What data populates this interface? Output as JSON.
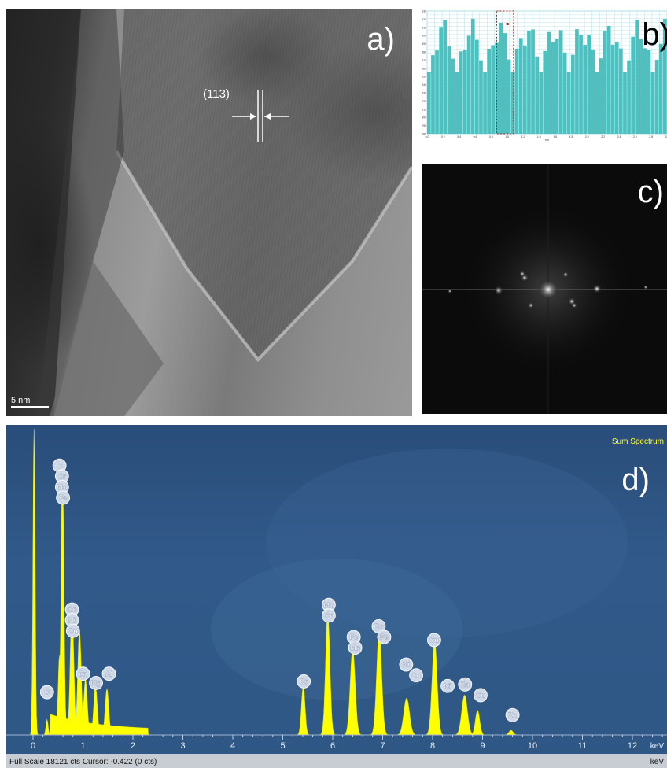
{
  "panel_labels": {
    "a": "a)",
    "b": "b)",
    "c": "c)",
    "d": "d)"
  },
  "tem": {
    "plane": "(113)",
    "scale_bar": "5 nm"
  },
  "profile": {
    "y_ticks": [
      "780",
      "790",
      "800",
      "810",
      "820",
      "830",
      "840",
      "850",
      "860",
      "870",
      "880",
      "890",
      "900",
      "910",
      "920",
      "930"
    ],
    "x_ticks": [
      "0.0",
      "0.2",
      "0.4",
      "0.6",
      "0.8",
      "1.0",
      "1.2",
      "1.4",
      "1.6",
      "1.8",
      "2.0",
      "2.2",
      "2.4",
      "2.6",
      "2.8",
      "3.0"
    ],
    "x_unit": "nm",
    "bar_color": "#4dc0c0"
  },
  "spectrum": {
    "title": "Sum Spectrum",
    "x_ticks": [
      "0",
      "1",
      "2",
      "3",
      "4",
      "5",
      "6",
      "7",
      "8",
      "9",
      "10",
      "11",
      "12"
    ],
    "x_unit": "keV",
    "status": "Full Scale 18121 cts Cursor: -0.422 (0 cts)",
    "peak_color": "#ffff00",
    "element_labels": [
      {
        "text": "O",
        "x": 0.53,
        "yf": 0.12
      },
      {
        "text": "Cr",
        "x": 0.58,
        "yf": 0.155
      },
      {
        "text": "Mn",
        "x": 0.58,
        "yf": 0.19
      },
      {
        "text": "Fe",
        "x": 0.6,
        "yf": 0.225
      },
      {
        "text": "C",
        "x": 0.28,
        "yf": 0.86
      },
      {
        "text": "Co",
        "x": 0.78,
        "yf": 0.59
      },
      {
        "text": "Ni",
        "x": 0.78,
        "yf": 0.625
      },
      {
        "text": "Cu",
        "x": 0.8,
        "yf": 0.66
      },
      {
        "text": "Zn",
        "x": 1.0,
        "yf": 0.8
      },
      {
        "text": "Mg",
        "x": 1.26,
        "yf": 0.83
      },
      {
        "text": "Al",
        "x": 1.52,
        "yf": 0.8
      },
      {
        "text": "Mn",
        "x": 5.92,
        "yf": 0.575
      },
      {
        "text": "Cr",
        "x": 5.92,
        "yf": 0.61
      },
      {
        "text": "Fe",
        "x": 6.42,
        "yf": 0.68
      },
      {
        "text": "Mn",
        "x": 6.45,
        "yf": 0.715
      },
      {
        "text": "Co",
        "x": 6.92,
        "yf": 0.645
      },
      {
        "text": "Fe",
        "x": 7.03,
        "yf": 0.68
      },
      {
        "text": "Ni",
        "x": 7.47,
        "yf": 0.77
      },
      {
        "text": "Co",
        "x": 7.67,
        "yf": 0.805
      },
      {
        "text": "Cu",
        "x": 8.03,
        "yf": 0.69
      },
      {
        "text": "Ni",
        "x": 8.3,
        "yf": 0.84
      },
      {
        "text": "Zn",
        "x": 8.65,
        "yf": 0.835
      },
      {
        "text": "Cr",
        "x": 5.42,
        "yf": 0.825
      },
      {
        "text": "Cu",
        "x": 8.96,
        "yf": 0.87
      },
      {
        "text": "Zn",
        "x": 9.6,
        "yf": 0.935
      }
    ]
  }
}
